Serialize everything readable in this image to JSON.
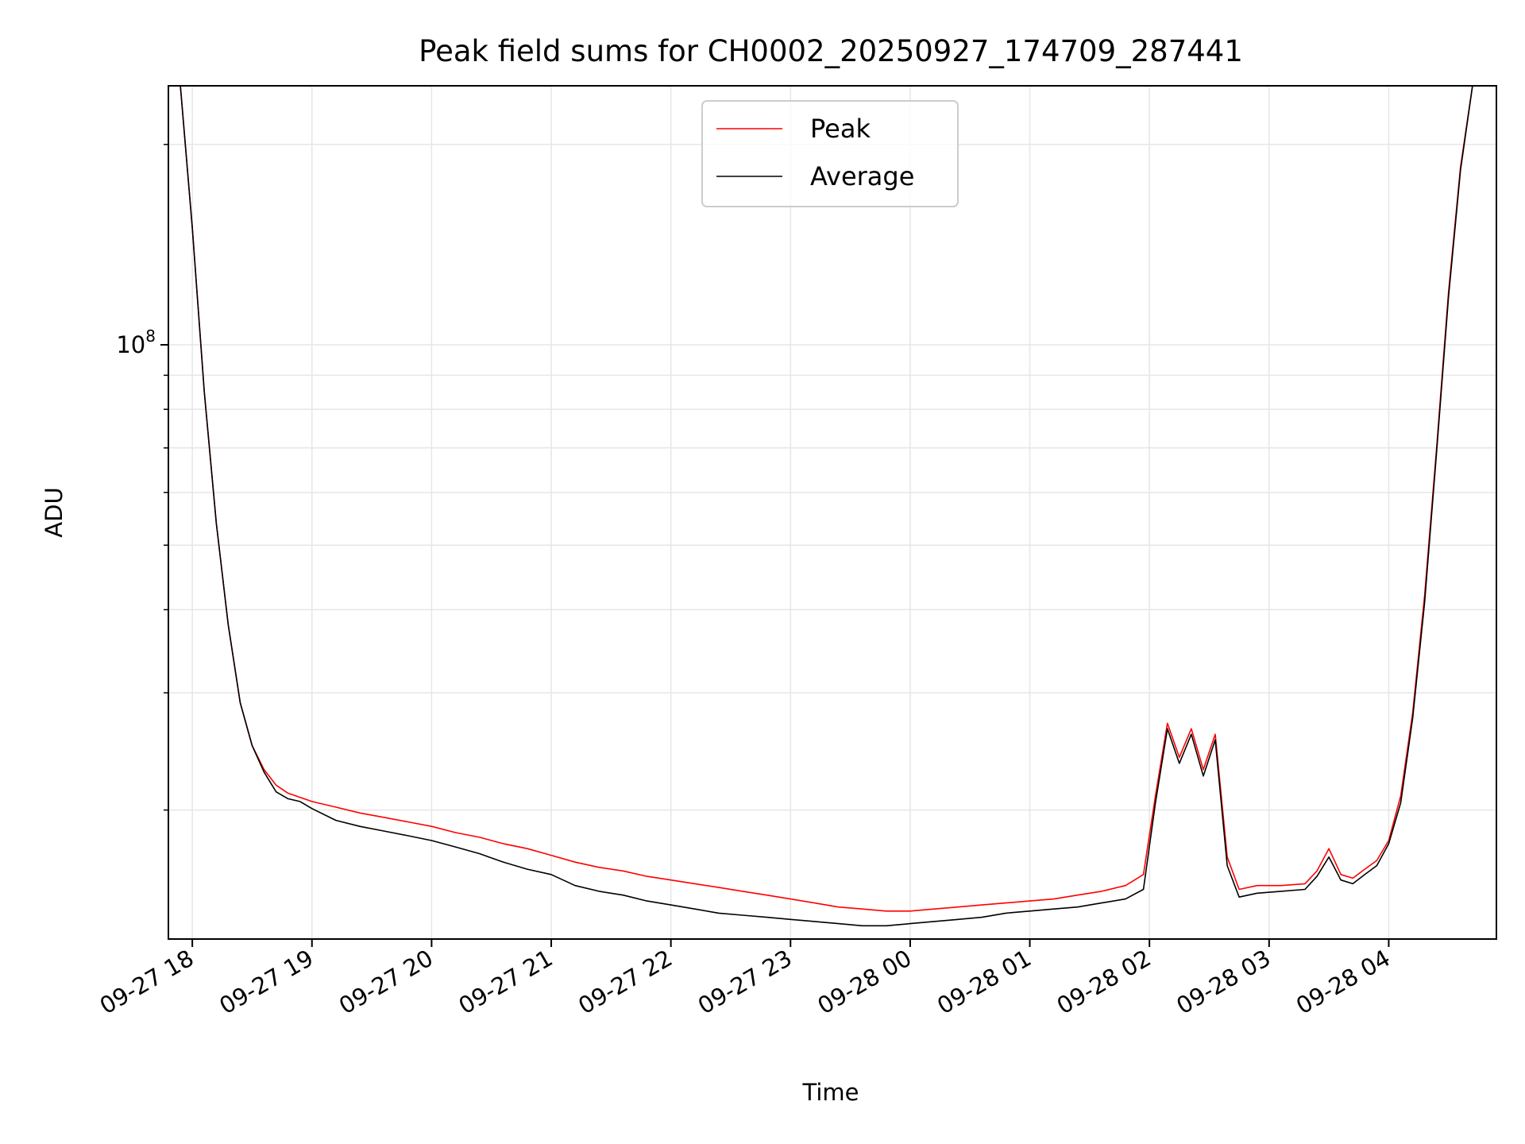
{
  "chart_data": {
    "type": "line",
    "title": "Peak field sums for CH0002_20250927_174709_287441",
    "xlabel": "Time",
    "ylabel": "ADU",
    "yscale": "log",
    "grid": true,
    "legend_position": "top-center",
    "xlim": [
      17.8,
      28.9
    ],
    "ylim": [
      12800000,
      245000000
    ],
    "x_tick_values": [
      18,
      19,
      20,
      21,
      22,
      23,
      24,
      25,
      26,
      27,
      28
    ],
    "x_tick_labels": [
      "09-27 18",
      "09-27 19",
      "09-27 20",
      "09-27 21",
      "09-27 22",
      "09-27 23",
      "09-28 00",
      "09-28 01",
      "09-28 02",
      "09-28 03",
      "09-28 04"
    ],
    "y_major_tick": {
      "value": 100000000,
      "base": "10",
      "exponent": "8"
    },
    "y_minor_ticks": [
      20000000,
      30000000,
      40000000,
      50000000,
      60000000,
      70000000,
      80000000,
      90000000,
      200000000
    ],
    "x_units": "hours since 09-27 00:00",
    "series": [
      {
        "name": "Peak",
        "color": "#ff0000",
        "x": [
          17.8,
          17.9,
          18.0,
          18.1,
          18.2,
          18.3,
          18.4,
          18.5,
          18.6,
          18.7,
          18.8,
          18.9,
          19.0,
          19.2,
          19.4,
          19.6,
          19.8,
          20.0,
          20.2,
          20.4,
          20.6,
          20.8,
          21.0,
          21.2,
          21.4,
          21.6,
          21.8,
          22.0,
          22.2,
          22.4,
          22.6,
          22.8,
          23.0,
          23.2,
          23.4,
          23.6,
          23.8,
          24.0,
          24.2,
          24.4,
          24.6,
          24.8,
          25.0,
          25.2,
          25.4,
          25.6,
          25.8,
          25.95,
          26.05,
          26.15,
          26.25,
          26.35,
          26.45,
          26.55,
          26.65,
          26.75,
          26.9,
          27.1,
          27.3,
          27.4,
          27.5,
          27.6,
          27.7,
          27.8,
          27.9,
          28.0,
          28.1,
          28.2,
          28.3,
          28.4,
          28.5,
          28.6,
          28.7,
          28.8,
          28.9
        ],
        "values": [
          245000000,
          245000000,
          150000000,
          85000000,
          54000000,
          38000000,
          29000000,
          25000000,
          23000000,
          21800000,
          21200000,
          20900000,
          20600000,
          20200000,
          19800000,
          19500000,
          19200000,
          18900000,
          18500000,
          18200000,
          17800000,
          17500000,
          17100000,
          16700000,
          16400000,
          16200000,
          15900000,
          15700000,
          15500000,
          15300000,
          15100000,
          14900000,
          14700000,
          14500000,
          14300000,
          14200000,
          14100000,
          14100000,
          14200000,
          14300000,
          14400000,
          14500000,
          14600000,
          14700000,
          14900000,
          15100000,
          15400000,
          16000000,
          21000000,
          27000000,
          24000000,
          26500000,
          23000000,
          26000000,
          17000000,
          15200000,
          15400000,
          15400000,
          15500000,
          16200000,
          17500000,
          16000000,
          15800000,
          16300000,
          16800000,
          18000000,
          21000000,
          28000000,
          42000000,
          70000000,
          120000000,
          185000000,
          245000000,
          245000000,
          245000000
        ]
      },
      {
        "name": "Average",
        "color": "#000000",
        "x": [
          17.8,
          17.9,
          18.0,
          18.1,
          18.2,
          18.3,
          18.4,
          18.5,
          18.6,
          18.7,
          18.8,
          18.9,
          19.0,
          19.2,
          19.4,
          19.6,
          19.8,
          20.0,
          20.2,
          20.4,
          20.6,
          20.8,
          21.0,
          21.2,
          21.4,
          21.6,
          21.8,
          22.0,
          22.2,
          22.4,
          22.6,
          22.8,
          23.0,
          23.2,
          23.4,
          23.6,
          23.8,
          24.0,
          24.2,
          24.4,
          24.6,
          24.8,
          25.0,
          25.2,
          25.4,
          25.6,
          25.8,
          25.95,
          26.05,
          26.15,
          26.25,
          26.35,
          26.45,
          26.55,
          26.65,
          26.75,
          26.9,
          27.1,
          27.3,
          27.4,
          27.5,
          27.6,
          27.7,
          27.8,
          27.9,
          28.0,
          28.1,
          28.2,
          28.3,
          28.4,
          28.5,
          28.6,
          28.7,
          28.8,
          28.9
        ],
        "values": [
          245000000,
          245000000,
          150000000,
          85000000,
          54000000,
          38000000,
          29000000,
          25000000,
          22800000,
          21300000,
          20800000,
          20600000,
          20100000,
          19300000,
          18900000,
          18600000,
          18300000,
          18000000,
          17600000,
          17200000,
          16700000,
          16300000,
          16000000,
          15400000,
          15100000,
          14900000,
          14600000,
          14400000,
          14200000,
          14000000,
          13900000,
          13800000,
          13700000,
          13600000,
          13500000,
          13400000,
          13400000,
          13500000,
          13600000,
          13700000,
          13800000,
          14000000,
          14100000,
          14200000,
          14300000,
          14500000,
          14700000,
          15200000,
          20500000,
          26500000,
          23500000,
          26000000,
          22500000,
          25500000,
          16500000,
          14800000,
          15000000,
          15100000,
          15200000,
          15900000,
          17000000,
          15700000,
          15500000,
          16000000,
          16500000,
          17800000,
          20500000,
          27500000,
          41000000,
          69000000,
          118000000,
          183000000,
          245000000,
          245000000,
          245000000
        ]
      }
    ]
  }
}
